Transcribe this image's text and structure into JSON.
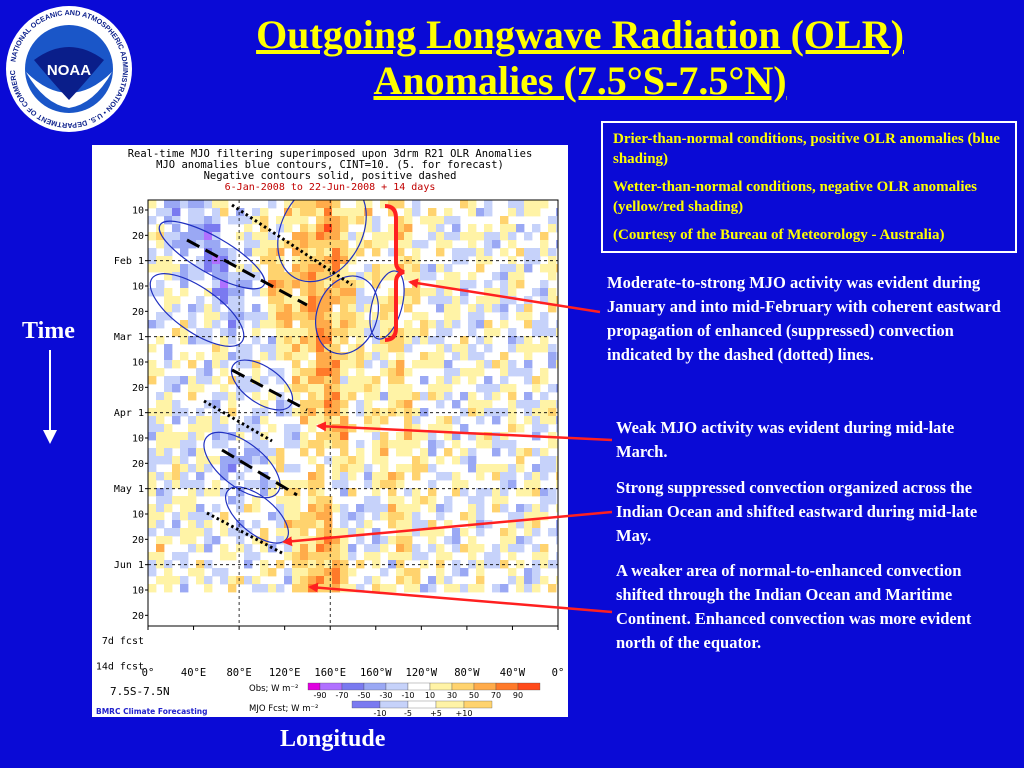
{
  "logo": {
    "center_text": "NOAA",
    "ring_text": "NATIONAL OCEANIC AND ATMOSPHERIC ADMINISTRATION • U.S. DEPARTMENT OF COMMERCE"
  },
  "slide": {
    "title_line1": "Outgoing Longwave Radiation (OLR)",
    "title_line2": "Anomalies (7.5°S-7.5°N)",
    "time_label": "Time",
    "longitude_label": "Longitude"
  },
  "note_box": {
    "line1": "Drier-than-normal conditions, positive OLR anomalies (blue shading)",
    "line2": "Wetter-than-normal conditions, negative OLR anomalies (yellow/red shading)",
    "line3": "(Courtesy of the Bureau of Meteorology - Australia)"
  },
  "annotations": {
    "a1": "Moderate-to-strong MJO activity was evident during January and into mid-February with coherent eastward propagation of enhanced (suppressed) convection indicated by the dashed (dotted) lines.",
    "a2": "Weak MJO activity was evident during mid-late March.",
    "a3": "Strong suppressed convection organized across the Indian Ocean and shifted eastward during mid-late May.",
    "a4": "A weaker area of normal-to-enhanced convection shifted through the Indian Ocean and Maritime Continent. Enhanced convection was more evident north of the equator."
  },
  "chart_data": {
    "type": "heatmap",
    "title": "Real-time MJO filtering superimposed upon 3drm R21 OLR Anomalies",
    "subtitle1": "MJO anomalies blue contours, CINT=10. (5. for forecast)",
    "subtitle2": "Negative contours solid, positive dashed",
    "subtitle3": "6-Jan-2008 to 22-Jun-2008 + 14 days",
    "y_ticks": [
      "10",
      "20",
      "Feb 1",
      "10",
      "20",
      "Mar 1",
      "10",
      "20",
      "Apr 1",
      "10",
      "20",
      "May 1",
      "10",
      "20",
      "Jun 1",
      "10",
      "20",
      "7d fcst",
      "14d fcst"
    ],
    "x_ticks": [
      "0°",
      "40°E",
      "80°E",
      "120°E",
      "160°E",
      "160°W",
      "120°W",
      "80°W",
      "40°W",
      "0°"
    ],
    "region_label": "7.5S-7.5N",
    "obs_label": "Obs; W m⁻²",
    "obs_levels": [
      -90,
      -70,
      -50,
      -30,
      -10,
      10,
      30,
      50,
      70,
      90
    ],
    "obs_colors": [
      "#e000e0",
      "#b070ff",
      "#7a7af0",
      "#9aa8f4",
      "#c6d2fa",
      "#ffffff",
      "#fff3a6",
      "#ffd36e",
      "#ffab4a",
      "#ff7a2a",
      "#ff4a1a"
    ],
    "fcst_label": "MJO Fcst; W m⁻²",
    "fcst_levels": [
      -10,
      -5,
      5,
      10
    ],
    "fcst_colors": [
      "#7a7af0",
      "#c6d2fa",
      "#ffffff",
      "#fff3a6",
      "#ffd36e"
    ],
    "credit": "BMRC Climate Forecasting"
  }
}
